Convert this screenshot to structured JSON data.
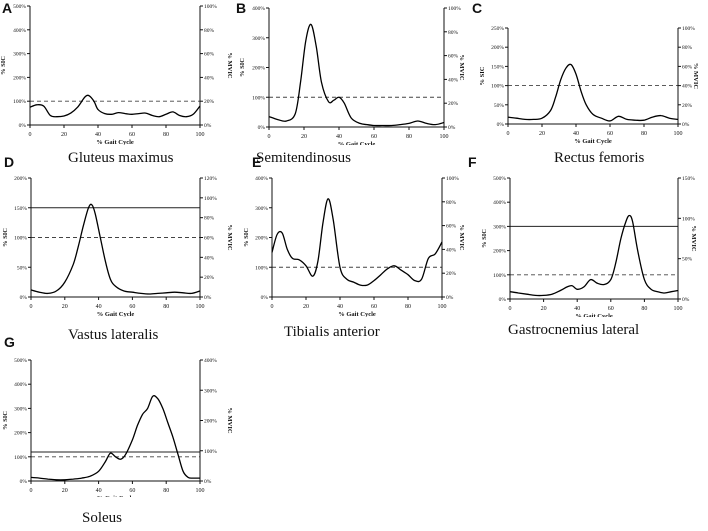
{
  "chart_data": [
    {
      "type": "line",
      "letter": "A",
      "title": "Gluteus maximus",
      "xlabel": "% Gait Cycle",
      "ylabel_left": "% SIC",
      "ylabel_right": "% MVIC",
      "xlim": [
        0,
        100
      ],
      "xticks": [
        "0",
        "20",
        "40",
        "60",
        "80",
        "100"
      ],
      "ylim": [
        0,
        500
      ],
      "yticks_left": [
        "0%",
        "100%",
        "200%",
        "300%",
        "400%",
        "500%"
      ],
      "yticks_right": [
        "0%",
        "20%",
        "40%",
        "60%",
        "80%",
        "100%"
      ],
      "ref_dashed": 100,
      "x": [
        0,
        4,
        8,
        12,
        16,
        20,
        24,
        28,
        32,
        34,
        36,
        38,
        40,
        44,
        48,
        52,
        56,
        60,
        64,
        68,
        72,
        76,
        80,
        84,
        88,
        92,
        96,
        100
      ],
      "y": [
        75,
        85,
        80,
        40,
        35,
        38,
        50,
        75,
        115,
        125,
        115,
        95,
        65,
        48,
        45,
        52,
        48,
        45,
        48,
        50,
        40,
        35,
        45,
        55,
        40,
        35,
        45,
        80
      ]
    },
    {
      "type": "line",
      "letter": "B",
      "title": "Semitendinosus",
      "xlabel": "% Gait Cycle",
      "ylabel_left": "% SIC",
      "ylabel_right": "% MVIC",
      "xlim": [
        0,
        100
      ],
      "xticks": [
        "0",
        "20",
        "40",
        "60",
        "80",
        "100"
      ],
      "ylim": [
        0,
        400
      ],
      "yticks_left": [
        "0%",
        "100%",
        "200%",
        "300%",
        "400%"
      ],
      "yticks_right": [
        "0%",
        "20%",
        "40%",
        "60%",
        "80%",
        "100%"
      ],
      "ref_dashed": 100,
      "x": [
        0,
        5,
        10,
        15,
        18,
        21,
        24,
        27,
        30,
        34,
        37,
        40,
        43,
        47,
        52,
        56,
        60,
        65,
        70,
        75,
        80,
        85,
        90,
        95,
        100
      ],
      "y": [
        35,
        25,
        20,
        45,
        150,
        290,
        345,
        270,
        150,
        85,
        90,
        100,
        80,
        30,
        12,
        8,
        5,
        5,
        5,
        8,
        12,
        20,
        12,
        8,
        15
      ]
    },
    {
      "type": "line",
      "letter": "C",
      "title": "Rectus femoris",
      "xlabel": "% Gait Cycle",
      "ylabel_left": "% SIC",
      "ylabel_right": "% MVIC",
      "xlim": [
        0,
        100
      ],
      "xticks": [
        "0",
        "20",
        "40",
        "60",
        "80",
        "100"
      ],
      "ylim": [
        0,
        250
      ],
      "yticks_left": [
        "0%",
        "50%",
        "100%",
        "150%",
        "200%",
        "250%"
      ],
      "yticks_right": [
        "0%",
        "20%",
        "40%",
        "60%",
        "80%",
        "100%"
      ],
      "ref_dashed": 100,
      "x": [
        0,
        5,
        10,
        15,
        20,
        25,
        28,
        31,
        34,
        37,
        40,
        43,
        46,
        50,
        55,
        60,
        65,
        70,
        75,
        80,
        85,
        90,
        95,
        100
      ],
      "y": [
        18,
        15,
        12,
        12,
        15,
        35,
        70,
        115,
        145,
        155,
        130,
        85,
        50,
        25,
        15,
        8,
        20,
        12,
        10,
        10,
        18,
        22,
        15,
        12
      ]
    },
    {
      "type": "line",
      "letter": "D",
      "title": "Vastus lateralis",
      "xlabel": "% Gait Cycle",
      "ylabel_left": "% SIC",
      "ylabel_right": "% MVIC",
      "xlim": [
        0,
        100
      ],
      "xticks": [
        "0",
        "20",
        "40",
        "60",
        "80",
        "100"
      ],
      "ylim": [
        0,
        200
      ],
      "yticks_left": [
        "0%",
        "50%",
        "100%",
        "150%",
        "200%"
      ],
      "yticks_right": [
        "0%",
        "20%",
        "40%",
        "60%",
        "80%",
        "100%",
        "120%"
      ],
      "ref_dashed": 100,
      "ref_solid": 150,
      "x": [
        0,
        5,
        10,
        15,
        20,
        25,
        28,
        31,
        34,
        36,
        38,
        41,
        44,
        47,
        50,
        55,
        60,
        65,
        70,
        75,
        80,
        85,
        90,
        95,
        100
      ],
      "y": [
        12,
        8,
        6,
        10,
        25,
        55,
        85,
        120,
        150,
        155,
        140,
        100,
        60,
        30,
        18,
        10,
        8,
        6,
        5,
        6,
        7,
        8,
        7,
        6,
        10
      ]
    },
    {
      "type": "line",
      "letter": "E",
      "title": "Tibialis anterior",
      "xlabel": "% Gait Cycle",
      "ylabel_left": "% SIC",
      "ylabel_right": "% MVIC",
      "xlim": [
        0,
        100
      ],
      "xticks": [
        "0",
        "20",
        "40",
        "60",
        "80",
        "100"
      ],
      "ylim": [
        0,
        400
      ],
      "yticks_left": [
        "0%",
        "100%",
        "200%",
        "300%",
        "400%"
      ],
      "yticks_right": [
        "0%",
        "20%",
        "40%",
        "60%",
        "80%",
        "100%"
      ],
      "ref_dashed": 100,
      "x": [
        0,
        3,
        6,
        9,
        12,
        16,
        20,
        24,
        27,
        30,
        33,
        36,
        40,
        44,
        48,
        52,
        56,
        60,
        64,
        68,
        72,
        76,
        80,
        84,
        88,
        92,
        96,
        100
      ],
      "y": [
        150,
        210,
        215,
        160,
        130,
        125,
        105,
        70,
        120,
        250,
        330,
        260,
        100,
        60,
        50,
        40,
        40,
        55,
        75,
        95,
        105,
        90,
        75,
        55,
        60,
        130,
        145,
        185
      ]
    },
    {
      "type": "line",
      "letter": "F",
      "title": "Gastrocnemius lateral",
      "xlabel": "% Gait Cycle",
      "ylabel_left": "% SIC",
      "ylabel_right": "% MVIC",
      "xlim": [
        0,
        100
      ],
      "xticks": [
        "0",
        "20",
        "40",
        "60",
        "80",
        "100"
      ],
      "ylim": [
        0,
        500
      ],
      "yticks_left": [
        "0%",
        "100%",
        "200%",
        "300%",
        "400%",
        "500%"
      ],
      "yticks_right": [
        "0%",
        "50%",
        "100%",
        "150%"
      ],
      "ref_dashed": 100,
      "ref_solid": 300,
      "x": [
        0,
        5,
        10,
        15,
        20,
        25,
        30,
        34,
        37,
        40,
        44,
        48,
        52,
        56,
        60,
        63,
        66,
        69,
        71,
        73,
        76,
        80,
        84,
        88,
        92,
        96,
        100
      ],
      "y": [
        30,
        25,
        20,
        15,
        15,
        20,
        35,
        50,
        55,
        40,
        50,
        80,
        65,
        60,
        80,
        150,
        250,
        320,
        345,
        320,
        200,
        80,
        40,
        30,
        25,
        30,
        35
      ]
    },
    {
      "type": "line",
      "letter": "G",
      "title": "Soleus",
      "xlabel": "% Gait Cycle",
      "ylabel_left": "% SIC",
      "ylabel_right": "% MVIC",
      "xlim": [
        0,
        100
      ],
      "xticks": [
        "0",
        "20",
        "40",
        "60",
        "80",
        "100"
      ],
      "ylim": [
        0,
        500
      ],
      "yticks_left": [
        "0%",
        "100%",
        "200%",
        "300%",
        "400%",
        "500%"
      ],
      "yticks_right": [
        "0%",
        "100%",
        "200%",
        "300%",
        "400%"
      ],
      "ref_dashed": 100,
      "ref_solid": 120,
      "x": [
        0,
        5,
        10,
        15,
        20,
        25,
        30,
        35,
        40,
        44,
        47,
        50,
        53,
        56,
        60,
        63,
        66,
        69,
        72,
        75,
        78,
        81,
        84,
        87,
        90,
        93,
        96,
        100
      ],
      "y": [
        15,
        12,
        8,
        5,
        5,
        8,
        12,
        20,
        40,
        80,
        115,
        100,
        90,
        110,
        170,
        230,
        275,
        300,
        350,
        340,
        300,
        240,
        180,
        110,
        40,
        15,
        12,
        12
      ]
    }
  ]
}
